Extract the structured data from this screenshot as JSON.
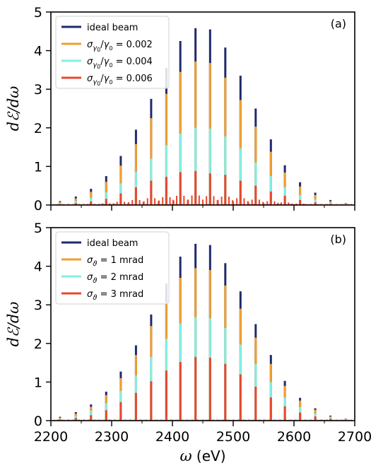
{
  "chart_data": [
    {
      "type": "bar",
      "panel_label": "(a)",
      "xlabel": "",
      "ylabel": "dℰ/dω",
      "xlim": [
        2200,
        2700
      ],
      "ylim": [
        0,
        5
      ],
      "x_ticks": [
        2200,
        2300,
        2400,
        2500,
        2600,
        2700
      ],
      "y_ticks": [
        0,
        1,
        2,
        3,
        4,
        5
      ],
      "legend_position": "top-left",
      "categories": [
        2215,
        2241,
        2266,
        2291,
        2315,
        2340,
        2365,
        2390,
        2413,
        2438,
        2462,
        2487,
        2512,
        2537,
        2562,
        2585,
        2610,
        2635,
        2660,
        2685
      ],
      "series": [
        {
          "name": "ideal beam",
          "color": "#1f2a6b",
          "values": [
            0.1,
            0.22,
            0.42,
            0.75,
            1.27,
            1.95,
            2.75,
            3.55,
            4.25,
            4.58,
            4.55,
            4.08,
            3.35,
            2.5,
            1.7,
            1.03,
            0.59,
            0.32,
            0.13,
            0.05
          ]
        },
        {
          "name": "σγ0/γ0 = 0.002",
          "color": "#f0a030",
          "values": [
            0.08,
            0.17,
            0.34,
            0.6,
            1.02,
            1.58,
            2.25,
            2.88,
            3.45,
            3.72,
            3.68,
            3.3,
            2.72,
            2.03,
            1.38,
            0.84,
            0.48,
            0.26,
            0.1,
            0.04
          ]
        },
        {
          "name": "σγ0/γ0 = 0.004",
          "color": "#80f0e6",
          "values": [
            0.04,
            0.1,
            0.19,
            0.33,
            0.56,
            0.86,
            1.2,
            1.55,
            1.85,
            2.0,
            1.98,
            1.78,
            1.47,
            1.1,
            0.75,
            0.46,
            0.26,
            0.14,
            0.06,
            0.03
          ]
        },
        {
          "name": "σγ0/γ0 = 0.006",
          "color": "#e8482c",
          "values": [
            0.02,
            0.05,
            0.09,
            0.16,
            0.3,
            0.46,
            0.63,
            0.73,
            0.85,
            0.88,
            0.82,
            0.78,
            0.63,
            0.5,
            0.35,
            0.24,
            0.13,
            0.07,
            0.03,
            0.02
          ]
        }
      ]
    },
    {
      "type": "bar",
      "panel_label": "(b)",
      "xlabel": "ω (eV)",
      "ylabel": "dℰ/dω",
      "xlim": [
        2200,
        2700
      ],
      "ylim": [
        0,
        5
      ],
      "x_ticks": [
        2200,
        2300,
        2400,
        2500,
        2600,
        2700
      ],
      "y_ticks": [
        0,
        1,
        2,
        3,
        4,
        5
      ],
      "legend_position": "top-left",
      "categories": [
        2215,
        2241,
        2266,
        2291,
        2315,
        2340,
        2365,
        2390,
        2413,
        2438,
        2462,
        2487,
        2512,
        2537,
        2562,
        2585,
        2610,
        2635,
        2660,
        2685
      ],
      "series": [
        {
          "name": "ideal beam",
          "color": "#1f2a6b",
          "values": [
            0.1,
            0.22,
            0.42,
            0.75,
            1.27,
            1.95,
            2.75,
            3.55,
            4.25,
            4.58,
            4.55,
            4.08,
            3.35,
            2.5,
            1.7,
            1.03,
            0.59,
            0.32,
            0.13,
            0.05
          ]
        },
        {
          "name": "σϑ = 1 mrad",
          "color": "#f0a030",
          "values": [
            0.08,
            0.18,
            0.36,
            0.66,
            1.1,
            1.7,
            2.45,
            3.05,
            3.7,
            3.95,
            3.9,
            3.5,
            2.9,
            2.15,
            1.47,
            0.9,
            0.52,
            0.28,
            0.11,
            0.04
          ]
        },
        {
          "name": "σϑ = 2 mrad",
          "color": "#80f0e6",
          "values": [
            0.05,
            0.12,
            0.26,
            0.45,
            0.77,
            1.17,
            1.65,
            2.12,
            2.52,
            2.68,
            2.65,
            2.4,
            1.97,
            1.47,
            1.0,
            0.6,
            0.35,
            0.18,
            0.08,
            0.03
          ]
        },
        {
          "name": "σϑ = 3 mrad",
          "color": "#e8482c",
          "values": [
            0.03,
            0.07,
            0.14,
            0.27,
            0.48,
            0.72,
            1.02,
            1.3,
            1.52,
            1.65,
            1.63,
            1.47,
            1.2,
            0.88,
            0.6,
            0.37,
            0.21,
            0.11,
            0.05,
            0.02
          ]
        }
      ]
    }
  ]
}
